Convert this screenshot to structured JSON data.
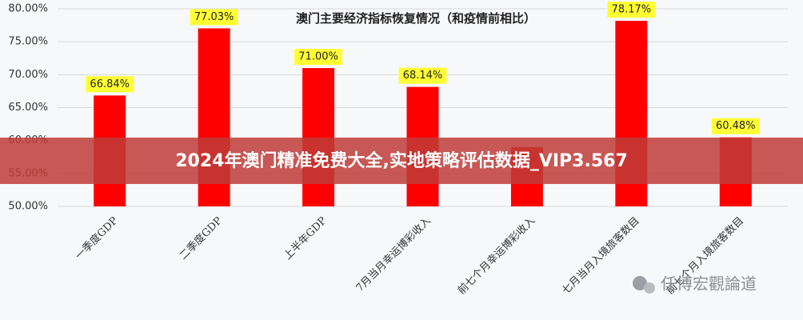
{
  "chart_data": {
    "type": "bar",
    "title": "澳门主要经济指标恢复情况（和疫情前相比）",
    "categories": [
      "一季度GDP",
      "二季度GDP",
      "上半年GDP",
      "7月当月幸运博彩收入",
      "前七个月幸运博彩收入",
      "七月当月入境旅客数目",
      "前七个月入境旅客数目"
    ],
    "values": [
      66.84,
      77.03,
      71.0,
      68.14,
      59,
      78.17,
      60.48
    ],
    "value_labels": [
      "66.84%",
      "77.03%",
      "71.00%",
      "68.14%",
      null,
      "78.17%",
      "60.48%"
    ],
    "color": "#ff0000",
    "ylim": [
      50,
      80
    ],
    "yticks": [
      {
        "value": 50,
        "label": "50.00%"
      },
      {
        "value": 55,
        "label": "55.00%"
      },
      {
        "value": 60,
        "label": "60.00%"
      },
      {
        "value": 65,
        "label": "65.00%"
      },
      {
        "value": 70,
        "label": "70.00%"
      },
      {
        "value": 75,
        "label": "75.00%"
      },
      {
        "value": 80,
        "label": "80.00%"
      }
    ],
    "grid": true
  },
  "banner": "2024年澳门精准免费大全,实地策略评估数据_VIP3.567",
  "watermark": "任博宏觀論道"
}
